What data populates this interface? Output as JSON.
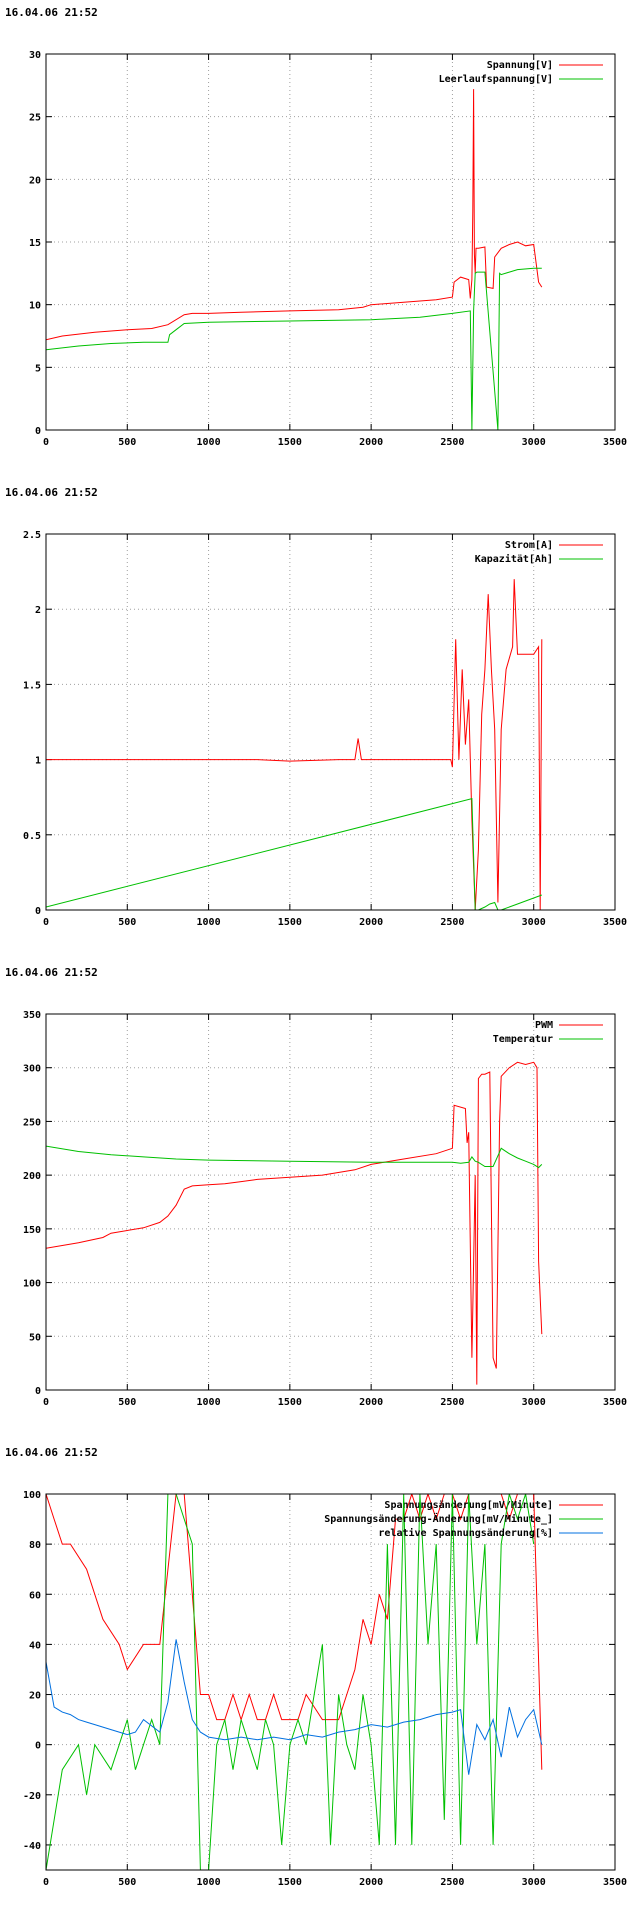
{
  "timestamp": "16.04.06 21:52",
  "chart_data": [
    {
      "type": "line",
      "xlim": [
        0,
        3500
      ],
      "ylim": [
        0,
        30
      ],
      "xticks": [
        0,
        500,
        1000,
        1500,
        2000,
        2500,
        3000,
        3500
      ],
      "yticks": [
        0,
        5,
        10,
        15,
        20,
        25,
        30
      ],
      "grid": true,
      "legend": "top-right",
      "series": [
        {
          "name": "Spannung[V]",
          "color": "#ff0000",
          "x": [
            0,
            100,
            300,
            500,
            650,
            750,
            850,
            900,
            1000,
            1200,
            1500,
            1800,
            1950,
            2000,
            2200,
            2400,
            2500,
            2510,
            2550,
            2600,
            2610,
            2620,
            2625,
            2630,
            2635,
            2640,
            2645,
            2660,
            2700,
            2710,
            2750,
            2760,
            2800,
            2850,
            2900,
            2950,
            3000,
            3030,
            3050
          ],
          "y": [
            7.2,
            7.5,
            7.8,
            8.0,
            8.1,
            8.4,
            9.2,
            9.3,
            9.3,
            9.4,
            9.5,
            9.6,
            9.8,
            10.0,
            10.2,
            10.4,
            10.6,
            11.8,
            12.2,
            12.0,
            10.5,
            12.0,
            17.5,
            27.2,
            14.0,
            12.5,
            14.5,
            14.5,
            14.6,
            11.4,
            11.3,
            13.8,
            14.5,
            14.8,
            15.0,
            14.7,
            14.8,
            11.8,
            11.4
          ]
        },
        {
          "name": "Leerlaufspannung[V]",
          "color": "#00c000",
          "x": [
            0,
            200,
            400,
            600,
            750,
            760,
            800,
            850,
            1000,
            1500,
            2000,
            2300,
            2500,
            2610,
            2620,
            2630,
            2640,
            2650,
            2700,
            2780,
            2790,
            2800,
            2850,
            2900,
            3000,
            3050
          ],
          "y": [
            6.4,
            6.7,
            6.9,
            7.0,
            7.0,
            7.6,
            8.0,
            8.5,
            8.6,
            8.7,
            8.8,
            9.0,
            9.3,
            9.5,
            0,
            9.5,
            12.5,
            12.6,
            12.6,
            0,
            12.5,
            12.4,
            12.6,
            12.8,
            12.9,
            12.9
          ]
        }
      ]
    },
    {
      "type": "line",
      "xlim": [
        0,
        3500
      ],
      "ylim": [
        0,
        2.5
      ],
      "xticks": [
        0,
        500,
        1000,
        1500,
        2000,
        2500,
        3000,
        3500
      ],
      "yticks": [
        0,
        0.5,
        1,
        1.5,
        2,
        2.5
      ],
      "grid": true,
      "legend": "top-right",
      "series": [
        {
          "name": "Strom[A]",
          "color": "#ff0000",
          "x": [
            0,
            500,
            1000,
            1300,
            1500,
            1800,
            1900,
            1920,
            1940,
            2000,
            2300,
            2490,
            2500,
            2520,
            2540,
            2560,
            2580,
            2600,
            2620,
            2640,
            2660,
            2680,
            2700,
            2720,
            2740,
            2760,
            2780,
            2800,
            2830,
            2870,
            2880,
            2900,
            2950,
            3000,
            3030,
            3040,
            3050
          ],
          "y": [
            1.0,
            1.0,
            1.0,
            1.0,
            0.99,
            1.0,
            1.0,
            1.14,
            1.0,
            1.0,
            1.0,
            1.0,
            0.95,
            1.8,
            1.0,
            1.6,
            1.1,
            1.4,
            0.6,
            0.0,
            0.4,
            1.3,
            1.6,
            2.1,
            1.6,
            1.2,
            0.05,
            1.2,
            1.6,
            1.75,
            2.2,
            1.7,
            1.7,
            1.7,
            1.75,
            0.0,
            1.8
          ]
        },
        {
          "name": "Kapazität[Ah]",
          "color": "#00c000",
          "x": [
            0,
            2620,
            2640,
            2660,
            2700,
            2730,
            2760,
            2780,
            2800,
            2850,
            2900,
            3000,
            3050
          ],
          "y": [
            0.02,
            0.74,
            0.0,
            0.0,
            0.02,
            0.04,
            0.05,
            0.0,
            0.0,
            0.02,
            0.04,
            0.08,
            0.1
          ]
        }
      ]
    },
    {
      "type": "line",
      "xlim": [
        0,
        3500
      ],
      "ylim": [
        0,
        350
      ],
      "xticks": [
        0,
        500,
        1000,
        1500,
        2000,
        2500,
        3000,
        3500
      ],
      "yticks": [
        0,
        50,
        100,
        150,
        200,
        250,
        300,
        350
      ],
      "grid": true,
      "legend": "top-right",
      "series": [
        {
          "name": "PWM",
          "color": "#ff0000",
          "x": [
            0,
            200,
            350,
            400,
            600,
            700,
            750,
            800,
            850,
            900,
            1000,
            1100,
            1200,
            1300,
            1500,
            1700,
            1900,
            2000,
            2200,
            2400,
            2500,
            2510,
            2580,
            2590,
            2600,
            2620,
            2640,
            2650,
            2660,
            2680,
            2700,
            2730,
            2750,
            2770,
            2790,
            2800,
            2850,
            2900,
            2950,
            3000,
            3020,
            3030,
            3050
          ],
          "y": [
            132,
            137,
            142,
            146,
            151,
            156,
            162,
            172,
            187,
            190,
            191,
            192,
            194,
            196,
            198,
            200,
            205,
            210,
            215,
            220,
            225,
            265,
            262,
            230,
            240,
            30,
            200,
            5,
            290,
            294,
            294,
            296,
            30,
            20,
            250,
            292,
            300,
            305,
            303,
            305,
            300,
            120,
            52
          ]
        },
        {
          "name": "Temperatur",
          "color": "#00c000",
          "x": [
            0,
            200,
            400,
            600,
            800,
            1000,
            1500,
            2000,
            2500,
            2550,
            2600,
            2620,
            2640,
            2660,
            2700,
            2750,
            2780,
            2800,
            2850,
            2900,
            2950,
            3000,
            3030,
            3050
          ],
          "y": [
            227,
            222,
            219,
            217,
            215,
            214,
            213,
            212,
            212,
            211,
            212,
            217,
            213,
            212,
            208,
            208,
            218,
            225,
            220,
            216,
            213,
            210,
            207,
            210
          ]
        }
      ]
    },
    {
      "type": "line",
      "xlim": [
        0,
        3500
      ],
      "ylim": [
        -50,
        100
      ],
      "xticks": [
        0,
        500,
        1000,
        1500,
        2000,
        2500,
        3000,
        3500
      ],
      "yticks": [
        -40,
        -20,
        0,
        20,
        40,
        60,
        80,
        100
      ],
      "grid": true,
      "legend": "top-right",
      "series": [
        {
          "name": "Spannungsänderung[mV/Minute]",
          "color": "#ff0000",
          "x": [
            0,
            50,
            100,
            150,
            250,
            350,
            450,
            500,
            600,
            700,
            800,
            850,
            950,
            1000,
            1050,
            1100,
            1150,
            1200,
            1250,
            1300,
            1350,
            1400,
            1450,
            1500,
            1550,
            1600,
            1700,
            1750,
            1800,
            1850,
            1900,
            1950,
            2000,
            2050,
            2100,
            2150,
            2200,
            2250,
            2300,
            2350,
            2400,
            2450,
            2500,
            2550,
            2600,
            2650,
            2700,
            2750,
            2800,
            2850,
            2900,
            2950,
            3000,
            3050
          ],
          "y": [
            100,
            90,
            80,
            80,
            70,
            50,
            40,
            30,
            40,
            40,
            100,
            100,
            20,
            20,
            10,
            10,
            20,
            10,
            20,
            10,
            10,
            20,
            10,
            10,
            10,
            20,
            10,
            10,
            10,
            20,
            30,
            50,
            40,
            60,
            50,
            90,
            90,
            100,
            90,
            100,
            90,
            100,
            100,
            90,
            100,
            100,
            100,
            100,
            100,
            90,
            100,
            100,
            100,
            -10
          ]
        },
        {
          "name": "Spannungsänderung-Änderung[mV/Minute_]",
          "color": "#00c000",
          "x": [
            0,
            100,
            200,
            250,
            300,
            400,
            450,
            500,
            550,
            600,
            650,
            700,
            750,
            800,
            850,
            900,
            950,
            1000,
            1050,
            1100,
            1150,
            1200,
            1250,
            1300,
            1350,
            1400,
            1450,
            1500,
            1550,
            1600,
            1650,
            1700,
            1750,
            1800,
            1850,
            1900,
            1950,
            2000,
            2050,
            2100,
            2150,
            2200,
            2250,
            2300,
            2350,
            2400,
            2450,
            2500,
            2550,
            2600,
            2650,
            2700,
            2750,
            2800,
            2850,
            2900,
            2950,
            3000
          ],
          "y": [
            -50,
            -10,
            0,
            -20,
            0,
            -10,
            0,
            10,
            -10,
            0,
            10,
            0,
            100,
            100,
            90,
            80,
            -50,
            -50,
            0,
            10,
            -10,
            10,
            0,
            -10,
            10,
            0,
            -40,
            0,
            10,
            0,
            20,
            40,
            -40,
            20,
            0,
            -10,
            20,
            0,
            -40,
            80,
            -40,
            100,
            -40,
            100,
            40,
            80,
            -30,
            100,
            -40,
            100,
            40,
            80,
            -40,
            80,
            100,
            90,
            100,
            80
          ]
        },
        {
          "name": "relative Spannungsänderung[%]",
          "color": "#0070e0",
          "x": [
            0,
            50,
            100,
            150,
            200,
            250,
            300,
            350,
            400,
            450,
            500,
            550,
            600,
            700,
            750,
            800,
            850,
            900,
            950,
            1000,
            1100,
            1200,
            1300,
            1400,
            1500,
            1600,
            1700,
            1800,
            1900,
            2000,
            2100,
            2200,
            2300,
            2400,
            2500,
            2550,
            2600,
            2650,
            2700,
            2750,
            2800,
            2850,
            2900,
            2950,
            3000,
            3050
          ],
          "y": [
            33,
            15,
            13,
            12,
            10,
            9,
            8,
            7,
            6,
            5,
            4,
            5,
            10,
            5,
            17,
            42,
            25,
            10,
            5,
            3,
            2,
            3,
            2,
            3,
            2,
            4,
            3,
            5,
            6,
            8,
            7,
            9,
            10,
            12,
            13,
            14,
            -12,
            8,
            2,
            10,
            -5,
            15,
            3,
            10,
            14,
            0
          ]
        }
      ]
    }
  ]
}
